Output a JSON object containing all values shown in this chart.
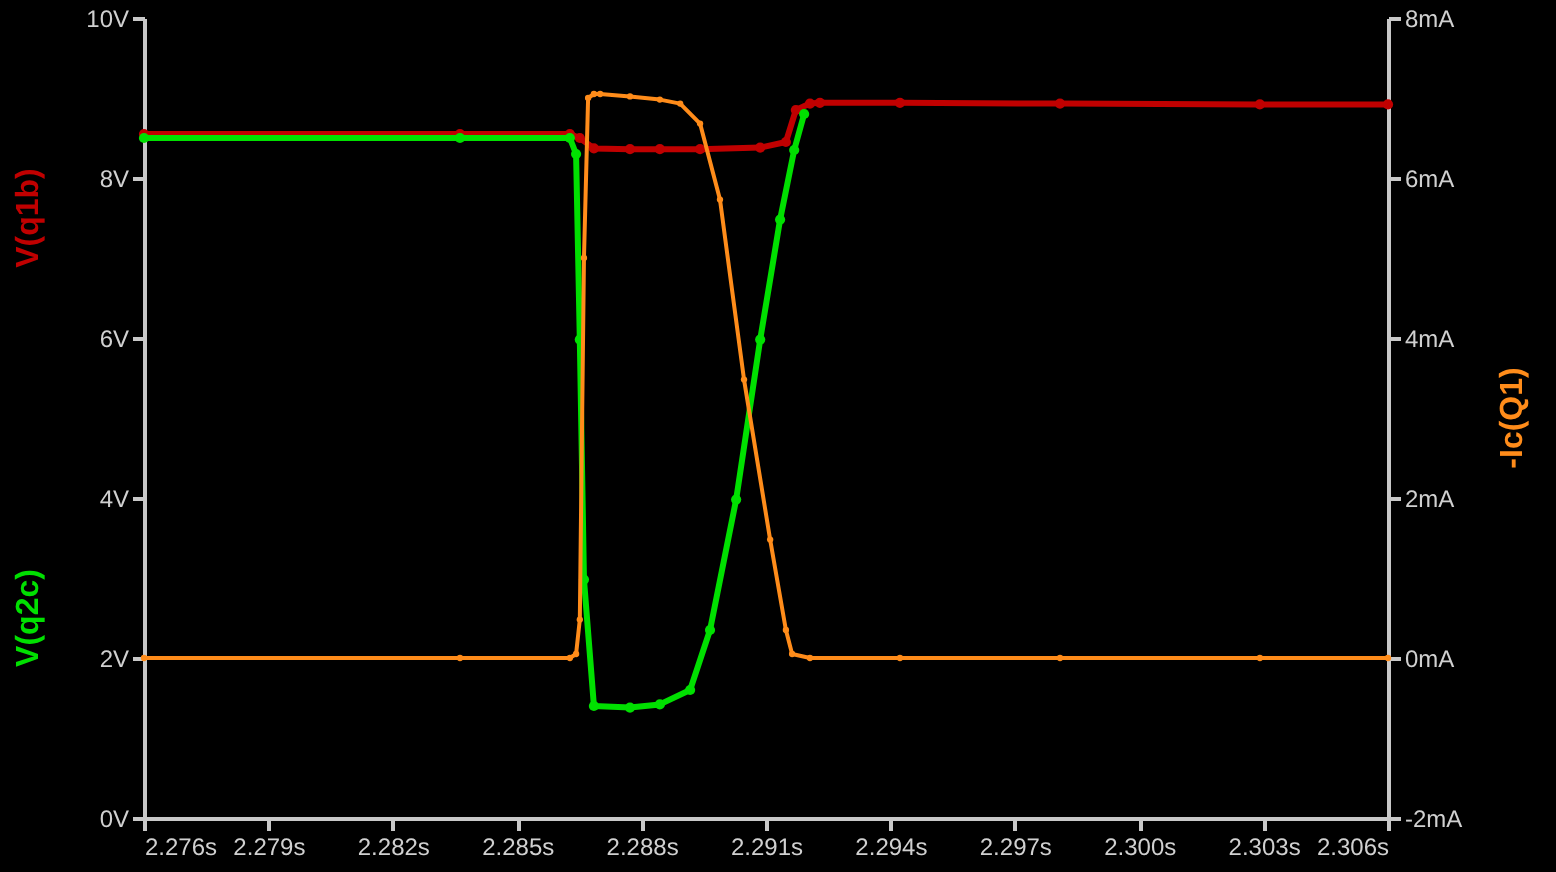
{
  "chart_data": {
    "type": "line",
    "marker": "circle",
    "line_style": "solid",
    "xlim": [
      2.276,
      2.306
    ],
    "xticks": [
      {
        "value": 2.276,
        "label": "2.276s"
      },
      {
        "value": 2.279,
        "label": "2.279s"
      },
      {
        "value": 2.282,
        "label": "2.282s"
      },
      {
        "value": 2.285,
        "label": "2.285s"
      },
      {
        "value": 2.288,
        "label": "2.288s"
      },
      {
        "value": 2.291,
        "label": "2.291s"
      },
      {
        "value": 2.294,
        "label": "2.294s"
      },
      {
        "value": 2.297,
        "label": "2.297s"
      },
      {
        "value": 2.3,
        "label": "2.300s"
      },
      {
        "value": 2.303,
        "label": "2.303s"
      },
      {
        "value": 2.306,
        "label": "2.306s"
      }
    ],
    "ylim": [
      0,
      10
    ],
    "yticks": [
      {
        "value": 0,
        "label": "0V"
      },
      {
        "value": 2,
        "label": "2V"
      },
      {
        "value": 4,
        "label": "4V"
      },
      {
        "value": 6,
        "label": "6V"
      },
      {
        "value": 8,
        "label": "8V"
      },
      {
        "value": 10,
        "label": "10V"
      }
    ],
    "y2lim": [
      -2,
      8
    ],
    "y2ticks": [
      {
        "value": -2,
        "label": "-2mA"
      },
      {
        "value": 0,
        "label": "0mA"
      },
      {
        "value": 2,
        "label": "2mA"
      },
      {
        "value": 4,
        "label": "4mA"
      },
      {
        "value": 6,
        "label": "6mA"
      },
      {
        "value": 8,
        "label": "8mA"
      }
    ],
    "series": [
      {
        "name": "V(q1b)",
        "color": "#c00000",
        "x": [
          2.276,
          2.28362,
          2.28627,
          2.28651,
          2.28685,
          2.28772,
          2.28844,
          2.28941,
          2.29086,
          2.29148,
          2.29172,
          2.29206,
          2.2923,
          2.29423,
          2.29809,
          2.30291,
          2.306
        ],
        "values": [
          8.55,
          8.55,
          8.55,
          8.5,
          8.37,
          8.36,
          8.36,
          8.36,
          8.38,
          8.45,
          8.85,
          8.93,
          8.94,
          8.94,
          8.93,
          8.92,
          8.92
        ]
      },
      {
        "name": "V(q2c)",
        "color": "#00e000",
        "x": [
          2.276,
          2.28362,
          2.28627,
          2.28642,
          2.28651,
          2.28661,
          2.28685,
          2.28772,
          2.28844,
          2.28917,
          2.28965,
          2.29028,
          2.29086,
          2.29134,
          2.29168,
          2.29192
        ],
        "values": [
          8.5,
          8.5,
          8.5,
          8.3,
          5.98,
          2.98,
          1.4,
          1.38,
          1.42,
          1.6,
          2.35,
          3.98,
          5.98,
          7.48,
          8.35,
          8.8
        ]
      },
      {
        "name": "-Ic(Q1)",
        "color": "#ff8c1a",
        "axis": "y2",
        "x": [
          2.276,
          2.28362,
          2.28627,
          2.28642,
          2.28651,
          2.28661,
          2.28671,
          2.28685,
          2.287,
          2.28772,
          2.28844,
          2.28893,
          2.28941,
          2.28989,
          2.29047,
          2.2911,
          2.29148,
          2.29163,
          2.29206,
          2.29423,
          2.29809,
          2.30291,
          2.306
        ],
        "values": [
          0,
          0,
          0,
          0.05,
          0.48,
          5,
          7.0,
          7.05,
          7.05,
          7.02,
          6.98,
          6.93,
          6.68,
          5.73,
          3.48,
          1.48,
          0.35,
          0.05,
          0,
          0,
          0,
          0,
          0
        ]
      }
    ]
  }
}
